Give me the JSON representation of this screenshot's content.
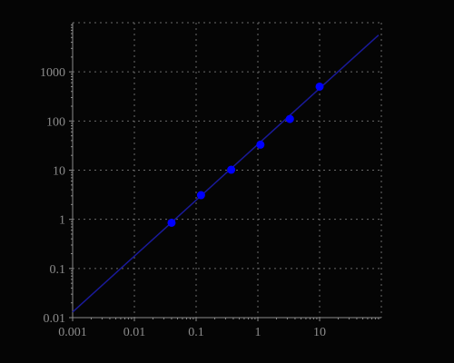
{
  "chart_data": {
    "type": "scatter",
    "title": "",
    "xlabel": "",
    "ylabel": "",
    "x_scale": "log",
    "y_scale": "log",
    "xlim": [
      0.001,
      100
    ],
    "ylim": [
      0.01,
      10000
    ],
    "grid": true,
    "legend": "none",
    "x_ticks": [
      {
        "value": 0.001,
        "label": "0.001"
      },
      {
        "value": 0.01,
        "label": "0.01"
      },
      {
        "value": 0.1,
        "label": "0.1"
      },
      {
        "value": 1,
        "label": "1"
      },
      {
        "value": 10,
        "label": "10"
      }
    ],
    "y_ticks": [
      {
        "value": 0.01,
        "label": "0.01"
      },
      {
        "value": 0.1,
        "label": "0.1"
      },
      {
        "value": 1,
        "label": "1"
      },
      {
        "value": 10,
        "label": "10"
      },
      {
        "value": 100,
        "label": "100"
      },
      {
        "value": 1000,
        "label": "1000"
      }
    ],
    "series": [
      {
        "type": "scatter",
        "x": [
          0.04,
          0.12,
          0.37,
          1.1,
          3.3,
          10
        ],
        "y": [
          0.85,
          3.1,
          10.2,
          33,
          110,
          500
        ]
      },
      {
        "type": "line",
        "x": [
          0.001,
          90
        ],
        "y": [
          0.013,
          5600
        ]
      }
    ],
    "colors": {
      "background": "#050505",
      "axis": "#8c8c8c",
      "grid": "#6a6a6a",
      "tick_label": "#8c8c8c",
      "points": "#0000ff",
      "fit_line": "#1a1a9a"
    }
  }
}
